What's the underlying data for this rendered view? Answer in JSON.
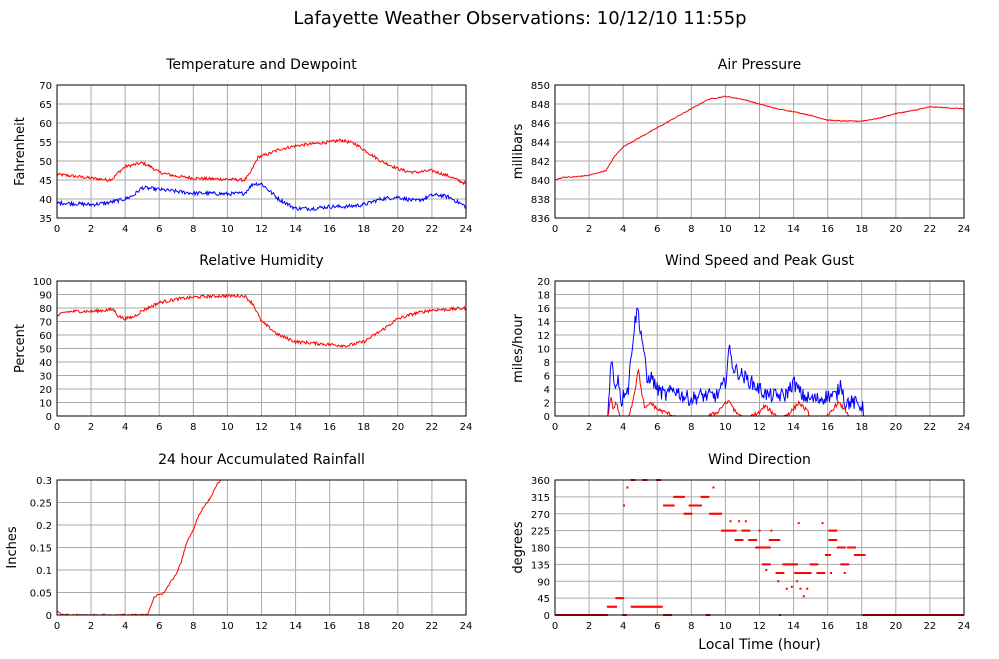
{
  "page_title": "Lafayette Weather Observations: 10/12/10 11:55p",
  "colors": {
    "primary": "#ff0000",
    "secondary": "#0000ff",
    "grid": "#aaaaaa"
  },
  "chart_data": [
    {
      "id": "temp",
      "type": "line",
      "title": "Temperature and Dewpoint",
      "xlabel": "",
      "ylabel": "Fahrenheit",
      "xlim": [
        0,
        24
      ],
      "ylim": [
        35,
        70
      ],
      "xticks": [
        0,
        2,
        4,
        6,
        8,
        10,
        12,
        14,
        16,
        18,
        20,
        22,
        24
      ],
      "yticks": [
        35,
        40,
        45,
        50,
        55,
        60,
        65,
        70
      ],
      "series": [
        {
          "color": "#ff0000",
          "noise": 0.4,
          "x": [
            0,
            1,
            2,
            3,
            3.3,
            3.6,
            4,
            4.5,
            5,
            5.5,
            6,
            7,
            8,
            9,
            10,
            11,
            11.3,
            11.8,
            12.5,
            13,
            14,
            15,
            16,
            16.7,
            17.5,
            18,
            19,
            20,
            20.5,
            21,
            22,
            23,
            24
          ],
          "y": [
            46.5,
            46,
            45.5,
            45,
            45.5,
            47,
            48.5,
            49,
            49.5,
            48.5,
            47,
            46,
            45.5,
            45.3,
            45.2,
            45,
            46.5,
            51,
            52,
            53,
            54,
            54.5,
            55,
            55.5,
            54.5,
            53,
            50,
            48,
            47.3,
            47,
            47.5,
            46,
            44
          ]
        },
        {
          "color": "#0000ff",
          "noise": 0.5,
          "x": [
            0,
            1,
            2,
            3,
            3.5,
            4,
            4.5,
            5,
            6,
            7,
            8,
            9,
            10,
            11,
            11.5,
            12,
            12.5,
            13,
            14,
            15,
            16,
            17,
            18,
            19,
            20,
            21,
            21.5,
            22,
            22.5,
            23,
            24
          ],
          "y": [
            39,
            38.8,
            38.5,
            39,
            39.5,
            40,
            41,
            43,
            42.5,
            42,
            41.5,
            41.5,
            41.3,
            41.5,
            44,
            44,
            42,
            40,
            37.5,
            37.5,
            38,
            38,
            38.5,
            40,
            40.5,
            39.5,
            40,
            41,
            41,
            40.5,
            38
          ]
        }
      ]
    },
    {
      "id": "pressure",
      "type": "line",
      "title": "Air Pressure",
      "xlabel": "",
      "ylabel": "millibars",
      "xlim": [
        0,
        24
      ],
      "ylim": [
        836,
        850
      ],
      "xticks": [
        0,
        2,
        4,
        6,
        8,
        10,
        12,
        14,
        16,
        18,
        20,
        22,
        24
      ],
      "yticks": [
        836,
        838,
        840,
        842,
        844,
        846,
        848,
        850
      ],
      "series": [
        {
          "color": "#ff0000",
          "noise": 0.05,
          "x": [
            0,
            0.5,
            1,
            2,
            3,
            3.5,
            4,
            5,
            6,
            7,
            8,
            9,
            10,
            11,
            12,
            13,
            14,
            15,
            16,
            17,
            18,
            19,
            20,
            21,
            22,
            23,
            24
          ],
          "y": [
            840,
            840.3,
            840.3,
            840.5,
            841,
            842.5,
            843.5,
            844.5,
            845.5,
            846.5,
            847.5,
            848.5,
            848.8,
            848.5,
            848,
            847.5,
            847.2,
            846.8,
            846.3,
            846.2,
            846.2,
            846.5,
            847,
            847.3,
            847.7,
            847.6,
            847.5
          ]
        }
      ]
    },
    {
      "id": "humidity",
      "type": "line",
      "title": "Relative Humidity",
      "xlabel": "",
      "ylabel": "Percent",
      "xlim": [
        0,
        24
      ],
      "ylim": [
        0,
        100
      ],
      "xticks": [
        0,
        2,
        4,
        6,
        8,
        10,
        12,
        14,
        16,
        18,
        20,
        22,
        24
      ],
      "yticks": [
        0,
        10,
        20,
        30,
        40,
        50,
        60,
        70,
        80,
        90,
        100
      ],
      "series": [
        {
          "color": "#ff0000",
          "noise": 1.2,
          "x": [
            0,
            0.5,
            1,
            2,
            3,
            3.3,
            3.6,
            4,
            4.5,
            5,
            6,
            7,
            8,
            9,
            10,
            11,
            11.5,
            12,
            12.5,
            13,
            14,
            15,
            16,
            17,
            18,
            19,
            20,
            21,
            22,
            23,
            24
          ],
          "y": [
            74,
            77,
            77.5,
            77.5,
            78.5,
            79,
            74,
            72,
            73.5,
            78,
            84,
            86.5,
            88,
            88.7,
            89,
            89,
            83,
            70,
            65,
            60,
            55,
            54,
            53,
            52,
            55,
            63,
            72,
            76,
            78.5,
            79,
            80
          ]
        }
      ]
    },
    {
      "id": "wind",
      "type": "line",
      "title": "Wind Speed and Peak Gust",
      "xlabel": "",
      "ylabel": "miles/hour",
      "xlim": [
        0,
        24
      ],
      "ylim": [
        0,
        20
      ],
      "xticks": [
        0,
        2,
        4,
        6,
        8,
        10,
        12,
        14,
        16,
        18,
        20,
        22,
        24
      ],
      "yticks": [
        0,
        2,
        4,
        6,
        8,
        10,
        12,
        14,
        16,
        18,
        20
      ],
      "series": [
        {
          "color": "#0000ff",
          "noise": 1.1,
          "x": [
            0,
            3.1,
            3.3,
            3.5,
            3.7,
            3.9,
            4.1,
            4.3,
            4.5,
            4.7,
            4.85,
            5,
            5.2,
            5.4,
            5.6,
            6,
            6.5,
            7,
            7.5,
            8,
            8.5,
            9,
            9.5,
            10,
            10.2,
            10.5,
            11,
            11.5,
            12,
            12.5,
            13,
            13.5,
            14,
            14.5,
            15,
            15.5,
            16,
            16.5,
            16.8,
            17,
            17.5,
            18,
            18.2,
            24
          ],
          "y": [
            0,
            0,
            9,
            4,
            6,
            2,
            4,
            4,
            10,
            14,
            16,
            13,
            10,
            5,
            6,
            4,
            3,
            4,
            3,
            2.5,
            3,
            3,
            3,
            5,
            10,
            7,
            6,
            5,
            4,
            3,
            3,
            3,
            5,
            3,
            2.5,
            2.5,
            3,
            3,
            5,
            2,
            2,
            1.5,
            0,
            0
          ]
        },
        {
          "color": "#ff0000",
          "noise": 0.3,
          "x": [
            0,
            3.1,
            3.3,
            3.4,
            3.6,
            3.8,
            4,
            4.3,
            4.5,
            4.7,
            4.9,
            5.1,
            5.3,
            5.6,
            6,
            6.5,
            7,
            8,
            9,
            9.5,
            10,
            10.3,
            10.6,
            11,
            11.5,
            12,
            12.3,
            13,
            13.5,
            14,
            14.3,
            14.7,
            15,
            16,
            16.3,
            16.6,
            17,
            17.3,
            18,
            24
          ],
          "y": [
            0,
            0,
            3,
            1,
            2,
            0,
            0,
            0,
            1.5,
            4,
            7,
            3,
            1,
            2,
            1,
            0.5,
            0,
            0,
            0,
            0.5,
            2,
            2,
            0.5,
            0,
            0,
            0.5,
            1.5,
            0,
            0,
            1,
            2,
            1,
            0,
            0,
            1,
            2,
            1,
            0,
            0,
            0
          ]
        }
      ]
    },
    {
      "id": "rain",
      "type": "line",
      "title": "24 hour Accumulated Rainfall",
      "xlabel": "",
      "ylabel": "Inches",
      "xlim": [
        0,
        24
      ],
      "ylim": [
        0,
        0.3
      ],
      "xticks": [
        0,
        2,
        4,
        6,
        8,
        10,
        12,
        14,
        16,
        18,
        20,
        22,
        24
      ],
      "yticks": [
        0,
        0.05,
        0.1,
        0.15,
        0.2,
        0.25,
        0.3
      ],
      "series": [
        {
          "color": "#ff0000",
          "noise": 0.002,
          "x": [
            0,
            0.1,
            0.3,
            5.3,
            5.5,
            5.7,
            6,
            6.3,
            6.6,
            7,
            7.3,
            7.6,
            8,
            8.3,
            8.6,
            9,
            9.3,
            9.6
          ],
          "y": [
            0.01,
            0.005,
            0,
            0,
            0.02,
            0.04,
            0.045,
            0.05,
            0.07,
            0.09,
            0.12,
            0.16,
            0.19,
            0.22,
            0.24,
            0.26,
            0.285,
            0.3
          ]
        }
      ]
    },
    {
      "id": "direction",
      "type": "scatter",
      "title": "Wind Direction",
      "xlabel": "Local Time (hour)",
      "ylabel": "degrees",
      "xlim": [
        0,
        24
      ],
      "ylim": [
        0,
        360
      ],
      "xticks": [
        0,
        2,
        4,
        6,
        8,
        10,
        12,
        14,
        16,
        18,
        20,
        22,
        24
      ],
      "yticks": [
        0,
        45,
        90,
        135,
        180,
        225,
        270,
        315,
        360
      ],
      "series": [
        {
          "color": "#ff0000",
          "runs": [
            [
              0.0,
              3.1,
              0
            ],
            [
              3.1,
              3.6,
              22
            ],
            [
              3.6,
              4.0,
              45
            ],
            [
              4.0,
              4.2,
              0
            ],
            [
              4.5,
              6.3,
              22
            ],
            [
              6.4,
              6.8,
              0
            ],
            [
              8.9,
              9.1,
              0
            ],
            [
              18.2,
              24.0,
              0
            ],
            [
              4.5,
              4.7,
              360
            ],
            [
              5.2,
              5.4,
              360
            ],
            [
              6.0,
              6.2,
              360
            ],
            [
              6.4,
              7.0,
              292
            ],
            [
              7.0,
              7.6,
              315
            ],
            [
              7.6,
              8.0,
              270
            ],
            [
              8.0,
              8.6,
              292
            ],
            [
              8.6,
              9.0,
              315
            ],
            [
              9.1,
              9.8,
              270
            ],
            [
              9.8,
              10.6,
              225
            ],
            [
              10.6,
              11.0,
              200
            ],
            [
              11.0,
              11.4,
              225
            ],
            [
              11.4,
              11.8,
              200
            ],
            [
              11.8,
              12.6,
              180
            ],
            [
              12.2,
              12.6,
              135
            ],
            [
              12.6,
              13.2,
              200
            ],
            [
              13.0,
              13.4,
              112
            ],
            [
              13.4,
              14.2,
              135
            ],
            [
              14.2,
              15.0,
              112
            ],
            [
              15.0,
              15.4,
              135
            ],
            [
              15.4,
              15.8,
              112
            ],
            [
              15.9,
              16.2,
              160
            ],
            [
              16.1,
              16.5,
              200
            ],
            [
              16.1,
              16.5,
              225
            ],
            [
              16.6,
              17.0,
              180
            ],
            [
              16.8,
              17.2,
              135
            ],
            [
              17.2,
              17.6,
              180
            ],
            [
              17.6,
              18.2,
              160
            ]
          ],
          "points": [
            [
              4.05,
              292
            ],
            [
              4.25,
              340
            ],
            [
              7.9,
              292
            ],
            [
              9.3,
              340
            ],
            [
              10.3,
              250
            ],
            [
              10.8,
              250
            ],
            [
              11.2,
              250
            ],
            [
              12.0,
              225
            ],
            [
              12.7,
              225
            ],
            [
              12.4,
              120
            ],
            [
              13.1,
              90
            ],
            [
              13.6,
              70
            ],
            [
              13.9,
              75
            ],
            [
              14.2,
              90
            ],
            [
              14.4,
              70
            ],
            [
              14.3,
              245
            ],
            [
              14.6,
              50
            ],
            [
              14.8,
              70
            ],
            [
              15.7,
              245
            ],
            [
              16.2,
              112
            ],
            [
              17.0,
              112
            ],
            [
              13.2,
              0
            ],
            [
              18.1,
              0
            ],
            [
              14.1,
              112
            ]
          ]
        }
      ]
    }
  ]
}
